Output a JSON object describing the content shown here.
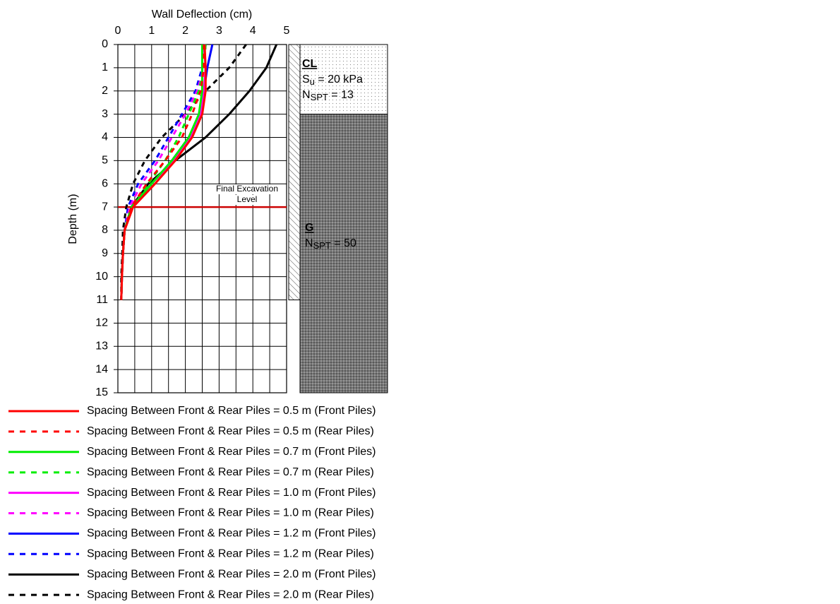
{
  "chart_data": {
    "type": "line",
    "xlabel": "Wall Deflection (cm)",
    "ylabel": "Depth (m)",
    "xlim": [
      0,
      5
    ],
    "xticks": [
      0,
      1,
      2,
      3,
      4,
      5
    ],
    "ylim": [
      0,
      15
    ],
    "yticks": [
      0,
      1,
      2,
      3,
      4,
      5,
      6,
      7,
      8,
      9,
      10,
      11,
      12,
      13,
      14,
      15
    ],
    "y_inverted": true,
    "grid": true,
    "y": [
      0,
      1,
      2,
      3,
      4,
      5,
      6,
      7,
      8,
      9,
      10,
      11
    ],
    "series": [
      {
        "name": "Spacing Between Front & Rear Piles = 0.5 m (Front Piles)",
        "color": "#ff0000",
        "dashed": false,
        "values": [
          2.57,
          2.6,
          2.6,
          2.5,
          2.2,
          1.7,
          1.1,
          0.45,
          0.2,
          0.15,
          0.12,
          0.1
        ]
      },
      {
        "name": "Spacing Between Front & Rear Piles = 0.5 m (Rear Piles)",
        "color": "#ff0000",
        "dashed": true,
        "values": [
          2.55,
          2.55,
          2.45,
          2.2,
          1.9,
          1.4,
          0.85,
          0.4,
          0.2,
          0.15,
          0.12,
          0.1
        ]
      },
      {
        "name": "Spacing Between Front & Rear Piles = 0.7 m (Front Piles)",
        "color": "#00ee00",
        "dashed": false,
        "values": [
          2.5,
          2.5,
          2.5,
          2.4,
          2.1,
          1.6,
          1.0,
          0.4,
          0.2,
          0.15,
          0.12,
          0.1
        ]
      },
      {
        "name": "Spacing Between Front & Rear Piles = 0.7 m (Rear Piles)",
        "color": "#00ee00",
        "dashed": true,
        "values": [
          2.6,
          2.55,
          2.4,
          2.1,
          1.8,
          1.4,
          0.9,
          0.4,
          0.2,
          0.15,
          0.12,
          0.1
        ]
      },
      {
        "name": "Spacing Between Front & Rear Piles = 1.0 m (Front Piles)",
        "color": "#ff00ff",
        "dashed": false,
        "values": [
          2.55,
          2.6,
          2.55,
          2.45,
          2.15,
          1.65,
          1.0,
          0.42,
          0.2,
          0.15,
          0.12,
          0.1
        ]
      },
      {
        "name": "Spacing Between Front & Rear Piles = 1.0 m (Rear Piles)",
        "color": "#ff00ff",
        "dashed": true,
        "values": [
          2.6,
          2.55,
          2.35,
          2.0,
          1.6,
          1.2,
          0.7,
          0.35,
          0.2,
          0.15,
          0.12,
          0.1
        ]
      },
      {
        "name": "Spacing Between Front & Rear Piles = 1.2 m (Front Piles)",
        "color": "#0000ff",
        "dashed": false,
        "values": [
          2.8,
          2.65,
          2.55,
          2.45,
          2.1,
          1.6,
          1.0,
          0.4,
          0.2,
          0.15,
          0.12,
          0.1
        ]
      },
      {
        "name": "Spacing Between Front & Rear Piles = 1.2 m (Rear Piles)",
        "color": "#0000ff",
        "dashed": true,
        "values": [
          2.6,
          2.5,
          2.3,
          1.9,
          1.5,
          1.1,
          0.6,
          0.3,
          0.2,
          0.15,
          0.12,
          0.1
        ]
      },
      {
        "name": "Spacing Between Front & Rear Piles = 2.0 m (Front Piles)",
        "color": "#000000",
        "dashed": false,
        "values": [
          4.7,
          4.4,
          3.9,
          3.3,
          2.6,
          1.7,
          0.9,
          0.4,
          0.2,
          0.15,
          0.12,
          0.1
        ]
      },
      {
        "name": "Spacing Between Front & Rear Piles = 2.0 m (Rear Piles)",
        "color": "#000000",
        "dashed": true,
        "values": [
          3.8,
          3.3,
          2.6,
          2.0,
          1.3,
          0.8,
          0.45,
          0.25,
          0.15,
          0.13,
          0.1,
          0.1
        ]
      }
    ],
    "excavation": {
      "depth": 7,
      "color": "#cc0000",
      "label": [
        "Final Excavation",
        "Level"
      ]
    },
    "wall_depth": 11,
    "layers": [
      {
        "name": "CL",
        "top": 0,
        "bottom": 3,
        "props": [
          {
            "main": "S",
            "sub": "u",
            "rest": " = 20 kPa"
          },
          {
            "main": "N",
            "sub": "SPT",
            "rest": " = 13"
          }
        ]
      },
      {
        "name": "G",
        "top": 3,
        "bottom": 15,
        "props": [
          {
            "main": "N",
            "sub": "SPT",
            "rest": " = 50"
          }
        ]
      }
    ]
  }
}
